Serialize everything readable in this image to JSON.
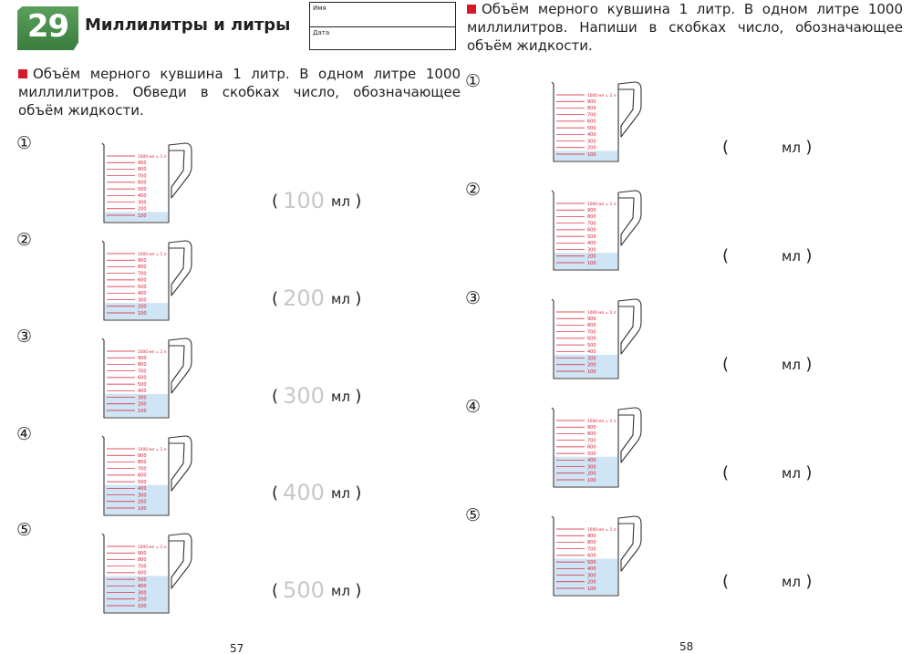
{
  "header": {
    "lesson_number": "29",
    "title": "Миллилитры и литры",
    "name_label": "Имя",
    "date_label": "Дата"
  },
  "left_task": {
    "instruction": "Объём мерного кувшина 1 литр. В одном литре 1000 миллилитров. Обведи в скобках число, обозначающее объём жидкости.",
    "items": [
      {
        "number": "①",
        "scale_top": "1000 мл = 1 л",
        "answer": "100",
        "unit": "мл",
        "fill_level_ml": 100
      },
      {
        "number": "②",
        "scale_top": "1000 мл = 1 л",
        "answer": "200",
        "unit": "мл",
        "fill_level_ml": 200
      },
      {
        "number": "③",
        "scale_top": "1000 мл = 1 л",
        "answer": "300",
        "unit": "мл",
        "fill_level_ml": 300
      },
      {
        "number": "④",
        "scale_top": "1000 мл = 1 л",
        "answer": "400",
        "unit": "мл",
        "fill_level_ml": 400
      },
      {
        "number": "⑤",
        "scale_top": "1000 мл = 1 л",
        "answer": "500",
        "unit": "мл",
        "fill_level_ml": 500
      }
    ]
  },
  "right_task": {
    "instruction": "Объём мерного кувшина 1 литр. В одном литре 1000 миллилитров. Напиши в скобках число, обозначающее объём жидкости.",
    "items": [
      {
        "number": "①",
        "scale_top": "1000 мл = 1 л",
        "unit": "мл",
        "fill_level_ml": 100
      },
      {
        "number": "②",
        "scale_top": "1000 мл = 1 л",
        "unit": "мл",
        "fill_level_ml": 200
      },
      {
        "number": "③",
        "scale_top": "1000 мл = 1 л",
        "unit": "мл",
        "fill_level_ml": 300
      },
      {
        "number": "④",
        "scale_top": "1000 мл = 1 л",
        "unit": "мл",
        "fill_level_ml": 400
      },
      {
        "number": "⑤",
        "scale_top": "1000 мл = 1 л",
        "unit": "мл",
        "fill_level_ml": 500
      }
    ]
  },
  "scale_labels": [
    "900",
    "800",
    "700",
    "600",
    "500",
    "400",
    "300",
    "200",
    "100"
  ],
  "colors": {
    "badge_green": "#4a9150",
    "bullet_red": "#d7182a",
    "scale_red": "#d7182a",
    "water_blue": "#cfe4f4",
    "answer_gray": "#c8c8c8"
  },
  "footer": {
    "left_page_number": "57",
    "right_page_number": "58"
  }
}
